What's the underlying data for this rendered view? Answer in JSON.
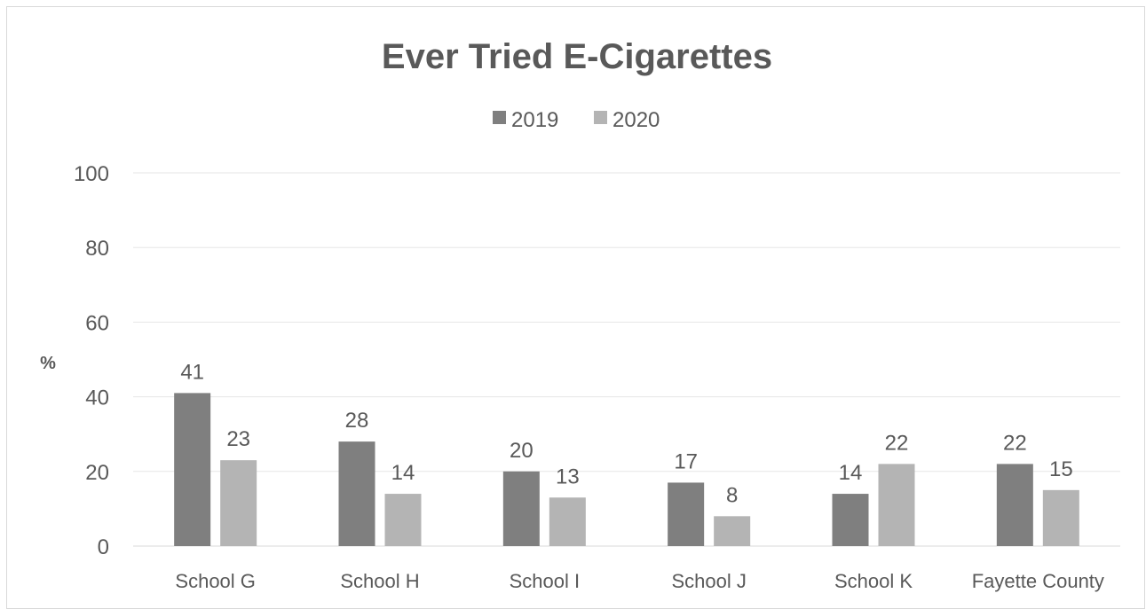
{
  "chart_data": {
    "type": "bar",
    "title": "Ever Tried E-Cigarettes",
    "ylabel": "%",
    "xlabel": "",
    "ylim": [
      0,
      100
    ],
    "yticks": [
      0,
      20,
      40,
      60,
      80,
      100
    ],
    "grid": true,
    "legend_position": "top",
    "categories": [
      "School G",
      "School H",
      "School I",
      "School J",
      "School K",
      "Fayette County"
    ],
    "series": [
      {
        "name": "2019",
        "color": "#7f7f7f",
        "values": [
          41,
          28,
          20,
          17,
          14,
          22
        ]
      },
      {
        "name": "2020",
        "color": "#b4b4b4",
        "values": [
          23,
          14,
          13,
          8,
          22,
          15
        ]
      }
    ]
  }
}
